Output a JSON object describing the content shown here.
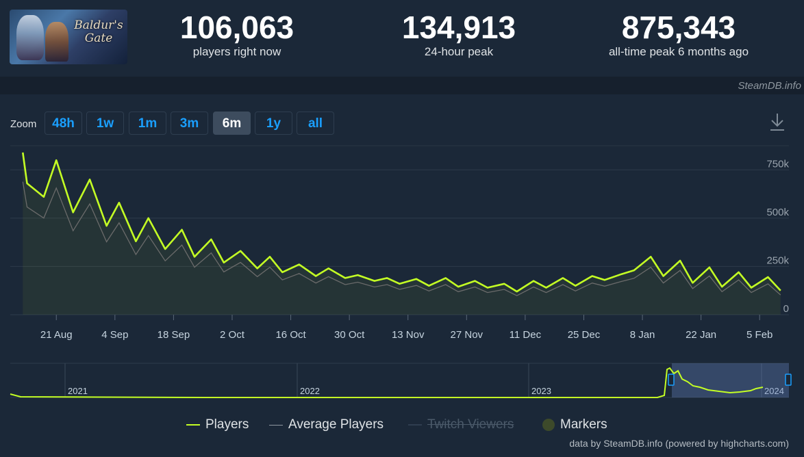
{
  "stats": {
    "now_value": "106,063",
    "now_label": "players right now",
    "peak24_value": "134,913",
    "peak24_label": "24-hour peak",
    "alltime_value": "875,343",
    "alltime_label": "all-time peak 6 months ago"
  },
  "game_logo_text": "Baldur's Gate",
  "credit": "SteamDB.info",
  "zoom": {
    "label": "Zoom",
    "buttons": [
      "48h",
      "1w",
      "1m",
      "3m",
      "6m",
      "1y",
      "all"
    ],
    "active": "6m"
  },
  "colors": {
    "players": "#c4ff24",
    "average": "#6b6b6b",
    "twitch": "#2f3e50",
    "markers": "#3d4a2a"
  },
  "chart_data": {
    "type": "line",
    "x_ticks": [
      "21 Aug",
      "4 Sep",
      "18 Sep",
      "2 Oct",
      "16 Oct",
      "30 Oct",
      "13 Nov",
      "27 Nov",
      "11 Dec",
      "25 Dec",
      "8 Jan",
      "22 Jan",
      "5 Feb"
    ],
    "y_ticks": [
      "0",
      "250k",
      "500k",
      "750k"
    ],
    "ylim": [
      0,
      875000
    ],
    "x_days_start": "2023-08-13",
    "xlim": [
      -3,
      183
    ],
    "series": [
      {
        "name": "Players",
        "peaks": [
          [
            0,
            840000
          ],
          [
            8,
            800000
          ],
          [
            16,
            700000
          ],
          [
            23,
            580000
          ],
          [
            30,
            500000
          ],
          [
            38,
            440000
          ],
          [
            45,
            390000
          ],
          [
            52,
            330000
          ],
          [
            59,
            300000
          ],
          [
            66,
            260000
          ],
          [
            73,
            240000
          ],
          [
            80,
            205000
          ],
          [
            87,
            190000
          ],
          [
            94,
            185000
          ],
          [
            101,
            190000
          ],
          [
            108,
            175000
          ],
          [
            115,
            160000
          ],
          [
            122,
            175000
          ],
          [
            129,
            190000
          ],
          [
            136,
            200000
          ],
          [
            143,
            210000
          ],
          [
            150,
            300000
          ],
          [
            157,
            280000
          ],
          [
            164,
            245000
          ],
          [
            171,
            220000
          ],
          [
            178,
            195000
          ]
        ],
        "troughs": [
          [
            1,
            680000
          ],
          [
            5,
            610000
          ],
          [
            12,
            530000
          ],
          [
            20,
            460000
          ],
          [
            27,
            380000
          ],
          [
            34,
            340000
          ],
          [
            41,
            300000
          ],
          [
            48,
            270000
          ],
          [
            56,
            240000
          ],
          [
            62,
            220000
          ],
          [
            70,
            200000
          ],
          [
            77,
            190000
          ],
          [
            84,
            175000
          ],
          [
            90,
            160000
          ],
          [
            97,
            150000
          ],
          [
            104,
            145000
          ],
          [
            111,
            140000
          ],
          [
            118,
            120000
          ],
          [
            125,
            140000
          ],
          [
            132,
            150000
          ],
          [
            139,
            180000
          ],
          [
            146,
            230000
          ],
          [
            153,
            200000
          ],
          [
            160,
            165000
          ],
          [
            167,
            145000
          ],
          [
            174,
            140000
          ],
          [
            181,
            125000
          ]
        ]
      },
      {
        "name": "Average Players",
        "ratio": 0.82
      },
      {
        "name": "Twitch Viewers",
        "visible": false
      },
      {
        "name": "Markers"
      }
    ],
    "navigator": {
      "year_labels": [
        "2021",
        "2022",
        "2023",
        "2024"
      ]
    }
  },
  "legend": {
    "players": "Players",
    "average": "Average Players",
    "twitch": "Twitch Viewers",
    "markers": "Markers"
  },
  "powered_by": "data by SteamDB.info (powered by highcharts.com)"
}
